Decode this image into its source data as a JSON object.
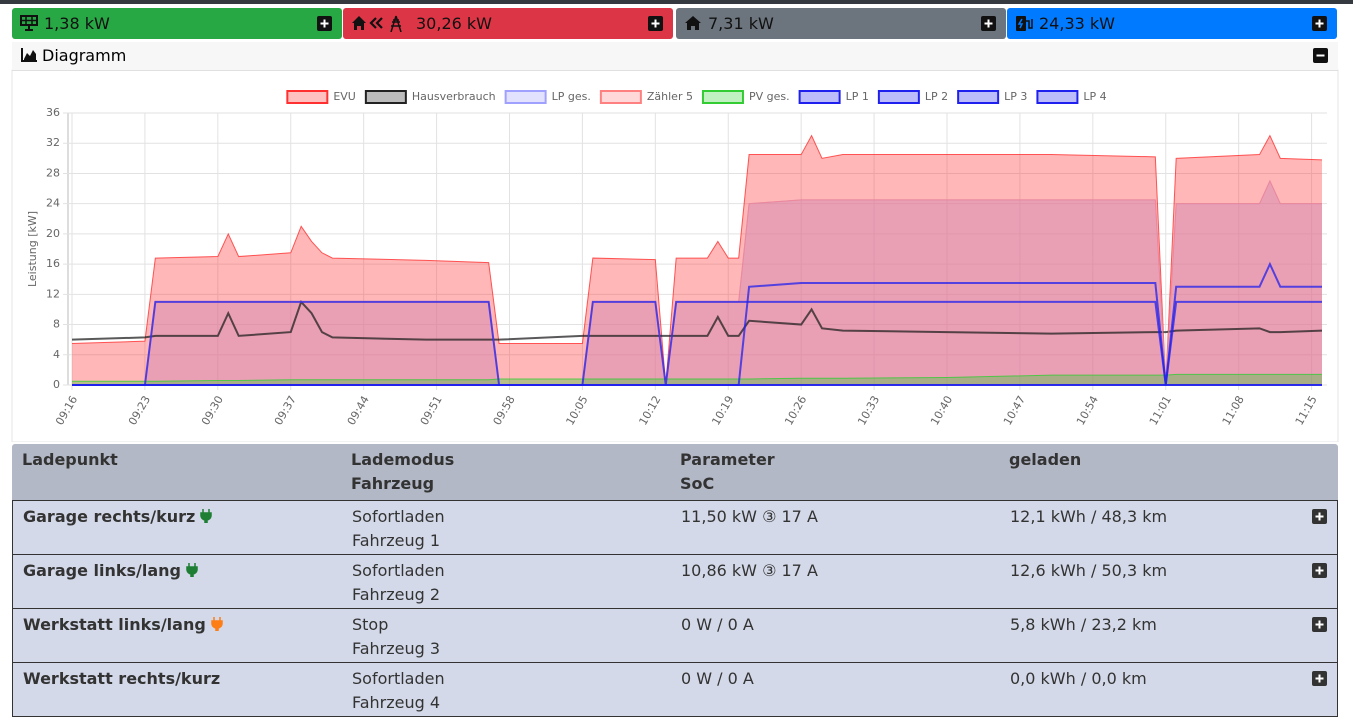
{
  "status_bar": [
    "1,38 kW",
    "30,26 kW",
    "7,31 kW",
    "24,33 kW"
  ],
  "panel_title": "Diagramm",
  "chart_data": {
    "type": "area",
    "y_label": "Leistung [kW]",
    "x": [
      "09:16",
      "09:23",
      "09:24",
      "09:30",
      "09:31",
      "09:32",
      "09:37",
      "09:38",
      "09:39",
      "09:40",
      "09:41",
      "09:50",
      "09:56",
      "09:57",
      "10:05",
      "10:06",
      "10:12",
      "10:13",
      "10:14",
      "10:17",
      "10:18",
      "10:19",
      "10:20",
      "10:21",
      "10:26",
      "10:27",
      "10:28",
      "10:30",
      "10:40",
      "10:50",
      "11:00",
      "11:01",
      "11:02",
      "11:10",
      "11:11",
      "11:12",
      "11:16"
    ],
    "xlim": [
      "09:16",
      "11:16"
    ],
    "xticks": [
      "09:16",
      "09:23",
      "09:30",
      "09:37",
      "09:44",
      "09:51",
      "09:58",
      "10:05",
      "10:12",
      "10:19",
      "10:26",
      "10:33",
      "10:40",
      "10:47",
      "10:54",
      "11:01",
      "11:08",
      "11:15"
    ],
    "ylim": [
      0,
      36
    ],
    "yticks": [
      0,
      4,
      8,
      12,
      16,
      20,
      24,
      28,
      32,
      36
    ],
    "grid": true,
    "series": [
      {
        "name": "EVU",
        "color": "#ff3030",
        "fill": true,
        "values": [
          5.5,
          5.8,
          16.8,
          17,
          20,
          17,
          17.5,
          21,
          19,
          17.5,
          16.8,
          16.5,
          16.2,
          5.5,
          5.5,
          16.8,
          16.6,
          0,
          16.8,
          16.8,
          19,
          16.8,
          16.8,
          30.5,
          30.5,
          33,
          30,
          30.5,
          30.5,
          30.5,
          30.2,
          0,
          30,
          30.5,
          33,
          30,
          29.8
        ]
      },
      {
        "name": "Hausverbrauch",
        "color": "#222222",
        "fill": false,
        "values": [
          6,
          6.3,
          6.5,
          6.5,
          9.5,
          6.5,
          7,
          11,
          9.5,
          7,
          6.3,
          6,
          6,
          6,
          6.5,
          6.5,
          6.5,
          6.5,
          6.5,
          6.5,
          9,
          6.5,
          6.5,
          8.5,
          8,
          10,
          7.5,
          7.2,
          7,
          6.8,
          7,
          7,
          7.2,
          7.5,
          7,
          7,
          7.2
        ]
      },
      {
        "name": "LP ges.",
        "color": "#a0a0ff",
        "fill": true,
        "values": [
          0,
          0,
          11,
          11,
          11,
          11,
          11,
          11,
          11,
          11,
          11,
          11,
          11,
          0,
          0,
          11,
          11,
          0,
          11,
          11,
          11,
          11,
          11,
          24,
          24.5,
          24.5,
          24.5,
          24.5,
          24.5,
          24.5,
          24.5,
          0,
          24,
          24,
          27,
          24,
          24
        ]
      },
      {
        "name": "Zähler 5",
        "color": "#ff8080",
        "fill": true,
        "values": [
          0,
          0,
          11,
          11,
          11,
          11,
          11,
          11,
          11,
          11,
          11,
          11,
          11,
          0,
          0,
          11,
          11,
          0,
          11,
          11,
          11,
          11,
          11,
          24,
          24.5,
          24.5,
          24.5,
          24.5,
          24.5,
          24.5,
          24.5,
          0,
          24,
          24,
          27,
          24,
          24
        ]
      },
      {
        "name": "PV ges.",
        "color": "#33cc33",
        "fill": true,
        "values": [
          0.5,
          0.5,
          0.5,
          0.6,
          0.6,
          0.6,
          0.7,
          0.7,
          0.7,
          0.7,
          0.7,
          0.7,
          0.7,
          0.8,
          0.8,
          0.8,
          0.8,
          0.8,
          0.8,
          0.8,
          0.8,
          0.8,
          0.8,
          0.8,
          0.9,
          0.9,
          0.9,
          0.9,
          1,
          1.3,
          1.3,
          1.3,
          1.4,
          1.4,
          1.4,
          1.4,
          1.4
        ]
      },
      {
        "name": "LP 1",
        "color": "#2020ee",
        "fill": false,
        "values": [
          0,
          0,
          11,
          11,
          11,
          11,
          11,
          11,
          11,
          11,
          11,
          11,
          11,
          0,
          0,
          11,
          11,
          0,
          11,
          11,
          11,
          11,
          11,
          11,
          11,
          11,
          11,
          11,
          11,
          11,
          11,
          0,
          11,
          11,
          11,
          11,
          11
        ]
      },
      {
        "name": "LP 2",
        "color": "#2020ee",
        "fill": false,
        "values": [
          0,
          0,
          0,
          0,
          0,
          0,
          0,
          0,
          0,
          0,
          0,
          0,
          0,
          0,
          0,
          0,
          0,
          0,
          0,
          0,
          0,
          0,
          0,
          13,
          13.5,
          13.5,
          13.5,
          13.5,
          13.5,
          13.5,
          13.5,
          0,
          13,
          13,
          16,
          13,
          13
        ]
      },
      {
        "name": "LP 3",
        "color": "#2020ee",
        "fill": false,
        "values": [
          0,
          0,
          0,
          0,
          0,
          0,
          0,
          0,
          0,
          0,
          0,
          0,
          0,
          0,
          0,
          0,
          0,
          0,
          0,
          0,
          0,
          0,
          0,
          0,
          0,
          0,
          0,
          0,
          0,
          0,
          0,
          0,
          0,
          0,
          0,
          0,
          0
        ]
      },
      {
        "name": "LP 4",
        "color": "#2020ee",
        "fill": false,
        "values": [
          0,
          0,
          0,
          0,
          0,
          0,
          0,
          0,
          0,
          0,
          0,
          0,
          0,
          0,
          0,
          0,
          0,
          0,
          0,
          0,
          0,
          0,
          0,
          0,
          0,
          0,
          0,
          0,
          0,
          0,
          0,
          0,
          0,
          0,
          0,
          0,
          0
        ]
      }
    ]
  },
  "table": {
    "headers": [
      [
        "Ladepunkt"
      ],
      [
        "Lademodus",
        "Fahrzeug"
      ],
      [
        "Parameter",
        "SoC"
      ],
      [
        "geladen"
      ]
    ],
    "rows": [
      {
        "name": "Garage rechts/kurz",
        "plug_color": "#1e7e34",
        "mode": "Sofortladen",
        "vehicle": "Fahrzeug 1",
        "parameter": "11,50 kW ③ 17 A",
        "charged": "12,1 kWh / 48,3 km"
      },
      {
        "name": "Garage links/lang",
        "plug_color": "#1e7e34",
        "mode": "Sofortladen",
        "vehicle": "Fahrzeug 2",
        "parameter": "10,86 kW ③ 17 A",
        "charged": "12,6 kWh / 50,3 km"
      },
      {
        "name": "Werkstatt links/lang",
        "plug_color": "#fd7e14",
        "mode": "Stop",
        "vehicle": "Fahrzeug 3",
        "parameter": "0 W / 0 A",
        "charged": "5,8 kWh / 23,2 km"
      },
      {
        "name": "Werkstatt rechts/kurz",
        "mode": "Sofortladen",
        "vehicle": "Fahrzeug 4",
        "parameter": "0 W / 0 A",
        "charged": "0,0 kWh / 0,0 km"
      }
    ]
  }
}
